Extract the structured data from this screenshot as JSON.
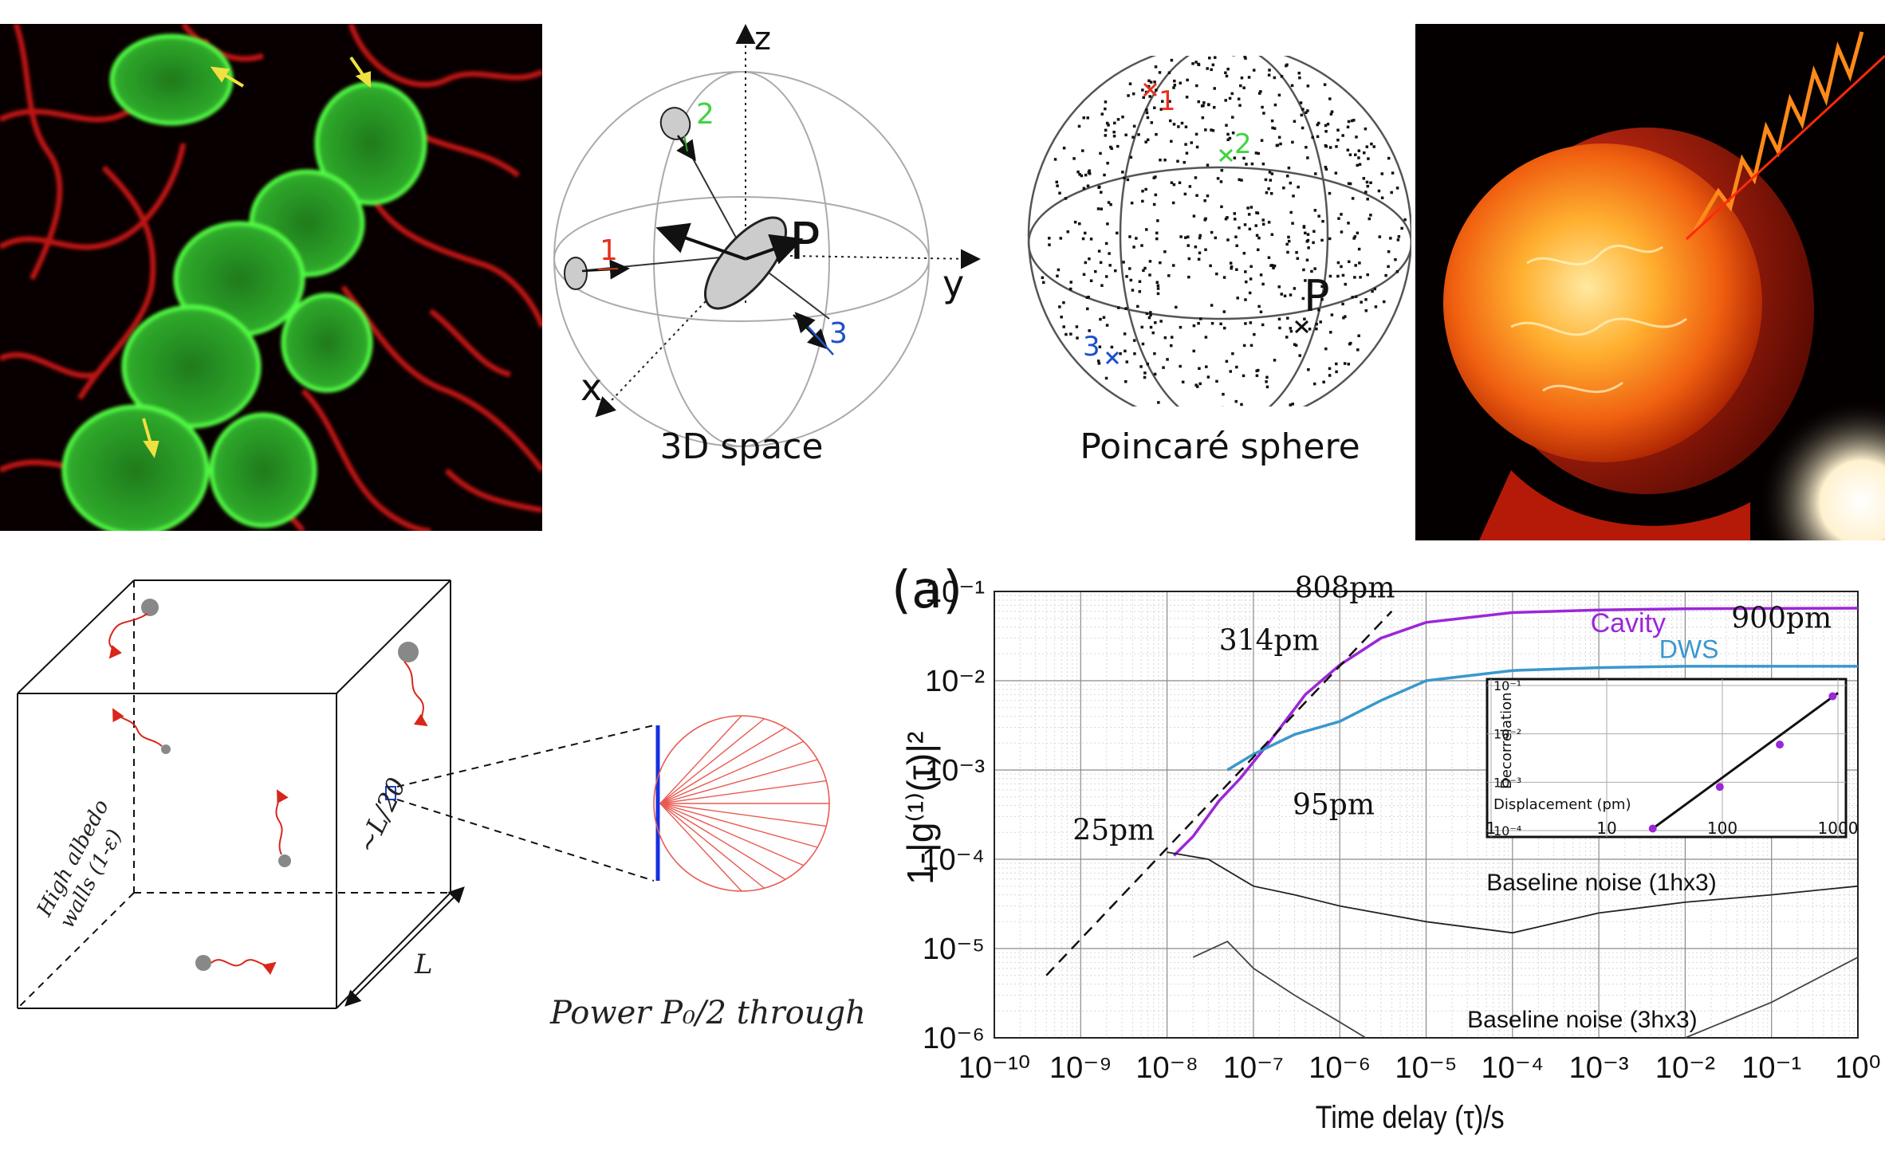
{
  "colors": {
    "cell_membrane": "#d81e1e",
    "green_cells": "#33e03a",
    "purple_cavity": "#9b27d8",
    "blue_dws": "#3a98cc",
    "red_marker": "#e6301e",
    "green_marker": "#3fd43f",
    "blue_marker": "#1e4fc8"
  },
  "icons": [
    "arrow-marker-icon",
    "photon-wave-icon"
  ],
  "panel_3d_space": {
    "axis_z": "z",
    "axis_y": "y",
    "axis_x": "x",
    "center_label": "P",
    "marker_labels": [
      "1",
      "2",
      "3"
    ],
    "caption": "3D space"
  },
  "panel_poincare": {
    "marker_labels": [
      "1",
      "2",
      "3"
    ],
    "center_label": "P",
    "caption": "Poincaré sphere"
  },
  "panel_box": {
    "wall_label_line1": "High albedo",
    "wall_label_line2": "walls (1-ε)",
    "aperture_label": "~L/20",
    "edge_label": "L",
    "power_caption": "Power P₀/2 through"
  },
  "chart_data": {
    "type": "line",
    "panel_label": "(a)",
    "xlabel": "Time delay (τ)/s",
    "ylabel": "1-|g⁽¹⁾(τ)|²",
    "xscale": "log",
    "yscale": "log",
    "xlim": [
      1e-10,
      1
    ],
    "ylim": [
      1e-06,
      0.1
    ],
    "x_ticks": [
      "10⁻¹⁰",
      "10⁻⁹",
      "10⁻⁸",
      "10⁻⁷",
      "10⁻⁶",
      "10⁻⁵",
      "10⁻⁴",
      "10⁻³",
      "10⁻²",
      "10⁻¹",
      "10⁰"
    ],
    "y_ticks": [
      "10⁻⁶",
      "10⁻⁵",
      "10⁻⁴",
      "10⁻³",
      "10⁻²",
      "10⁻¹"
    ],
    "grid": true,
    "series": [
      {
        "name": "Cavity",
        "color": "#9b27d8",
        "x": [
          1.2e-08,
          2e-08,
          4e-08,
          7e-08,
          1.5e-07,
          4e-07,
          1e-06,
          3e-06,
          1e-05,
          0.0001,
          0.001,
          0.01,
          1
        ],
        "y": [
          0.00011,
          0.00018,
          0.00045,
          0.0008,
          0.002,
          0.007,
          0.015,
          0.03,
          0.045,
          0.058,
          0.062,
          0.064,
          0.065
        ]
      },
      {
        "name": "DWS",
        "color": "#3a98cc",
        "x": [
          5e-08,
          1e-07,
          3e-07,
          1e-06,
          3e-06,
          1e-05,
          0.0001,
          0.001,
          0.01,
          1
        ],
        "y": [
          0.001,
          0.0015,
          0.0025,
          0.0035,
          0.006,
          0.01,
          0.013,
          0.014,
          0.0145,
          0.0145
        ]
      },
      {
        "name": "Baseline noise (1hx3)",
        "color": "#222222",
        "x": [
          1e-08,
          3e-08,
          1e-07,
          3e-07,
          1e-06,
          1e-05,
          0.0001,
          0.001,
          0.01,
          0.1,
          1
        ],
        "y": [
          0.00012,
          0.0001,
          5e-05,
          4e-05,
          3e-05,
          2e-05,
          1.5e-05,
          2.5e-05,
          3.3e-05,
          4e-05,
          5e-05
        ]
      },
      {
        "name": "Baseline noise (3hx3)",
        "color": "#444444",
        "x": [
          2e-08,
          5e-08,
          1e-07,
          3e-07,
          1e-06,
          2e-06
        ],
        "y": [
          8e-06,
          1.2e-05,
          6e-06,
          3e-06,
          1.5e-06,
          1e-06
        ]
      },
      {
        "name": "Baseline noise (3hx3) tail",
        "color": "#444444",
        "x": [
          0.01,
          0.1,
          1
        ],
        "y": [
          1e-06,
          2.5e-06,
          8e-06
        ]
      }
    ],
    "annotations": [
      "25pm",
      "95pm",
      "314pm",
      "808pm",
      "900pm",
      "Cavity",
      "DWS",
      "Baseline noise (1hx3)",
      "Baseline noise (3hx3)"
    ],
    "inset": {
      "type": "scatter",
      "xlabel": "Displacement (pm)",
      "ylabel": "Decorrelation",
      "x_ticks": [
        "1",
        "10",
        "100",
        "1000"
      ],
      "y_ticks": [
        "10⁻⁴",
        "10⁻³",
        "10⁻²",
        "10⁻¹"
      ],
      "x": [
        25,
        95,
        314,
        900
      ],
      "y": [
        0.00011,
        0.0008,
        0.006,
        0.06
      ]
    }
  }
}
